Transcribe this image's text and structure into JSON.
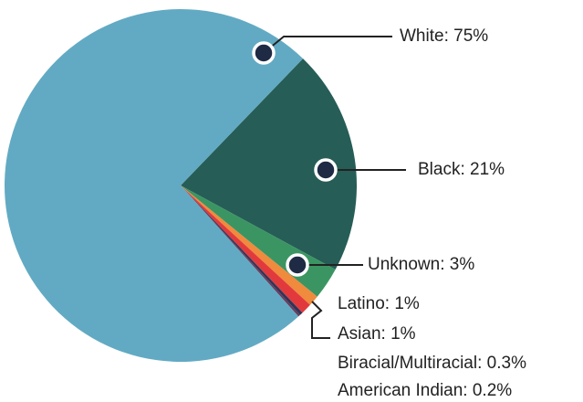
{
  "chart_data": {
    "type": "pie",
    "categories": [
      "Black: 21%",
      "Unknown: 3%",
      "Latino: 1%",
      "Asian: 1%",
      "Biracial/Multiracial: 0.3%",
      "American Indian: 0.2%",
      "White: 75%"
    ],
    "values": [
      21,
      3,
      1,
      1,
      0.3,
      0.2,
      75
    ],
    "colors": [
      "#265d57",
      "#3b9563",
      "#f08a3c",
      "#e23a3c",
      "#2e3558",
      "#6b3a5c",
      "#62aac3"
    ]
  }
}
